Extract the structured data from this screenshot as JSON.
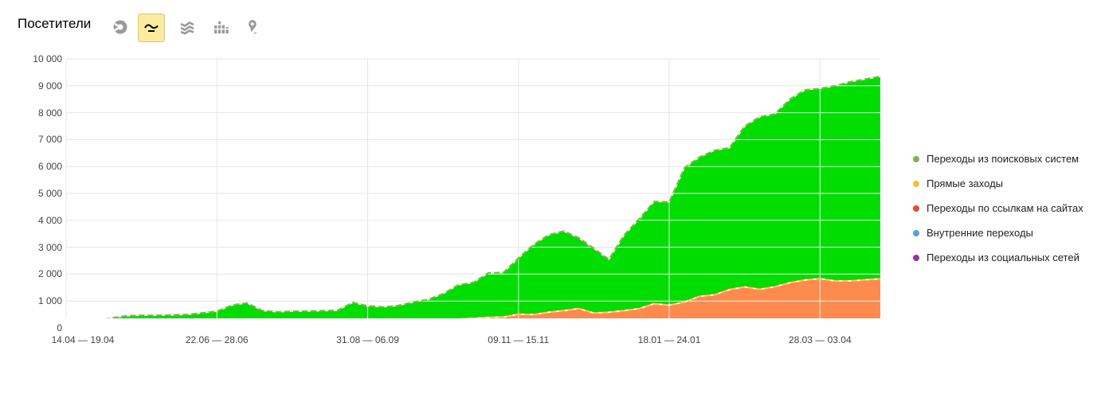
{
  "header": {
    "title": "Посетители",
    "toolbar": [
      {
        "id": "pie-chart",
        "selected": false
      },
      {
        "id": "line-chart",
        "selected": true
      },
      {
        "id": "stacked-area",
        "selected": false
      },
      {
        "id": "bar-chart",
        "selected": false
      },
      {
        "id": "map",
        "selected": false
      }
    ]
  },
  "colors": {
    "selected_button_bg": "#fbeb9e",
    "selected_button_border": "#d9c57a",
    "icon_gray": "#9a9a9a",
    "grid": "#e6e6e6",
    "grid_over_area": "#ffffff",
    "tick_text": "#444444"
  },
  "chart_data": {
    "type": "area",
    "stacked": true,
    "title": "Посетители",
    "grid": true,
    "legend_position": "right",
    "ylim": [
      0,
      10000
    ],
    "y_ticks": [
      0,
      1000,
      2000,
      3000,
      4000,
      5000,
      6000,
      7000,
      8000,
      9000,
      10000
    ],
    "y_tick_labels": [
      "0",
      "1 000",
      "2 000",
      "3 000",
      "4 000",
      "5 000",
      "6 000",
      "7 000",
      "8 000",
      "9 000",
      "10 000"
    ],
    "x_tick_labels": [
      "14.04 — 19.04",
      "22.06 — 28.06",
      "31.08 — 06.09",
      "09.11 — 15.11",
      "18.01 — 24.01",
      "28.03 — 03.04"
    ],
    "x_tick_week_index": [
      0,
      10,
      20,
      30,
      40,
      50
    ],
    "weeks_total": 55,
    "stack_order_bottom_to_top": [
      "Переходы из социальных сетей",
      "Переходы по ссылкам на сайтах",
      "Внутренние переходы",
      "Прямые заходы",
      "Переходы из поисковых систем"
    ],
    "series": [
      {
        "name": "Переходы из поисковых систем",
        "fill": "#00dd00",
        "stroke": "#9f9f6a",
        "dot": "#77b74e",
        "values": [
          45,
          30,
          115,
          235,
          305,
          325,
          325,
          335,
          340,
          400,
          442,
          627,
          662,
          437,
          417,
          437,
          432,
          437,
          432,
          707,
          587,
          542,
          577,
          697,
          787,
          965,
          1275,
          1333,
          1650,
          1655,
          2092,
          2602,
          2877,
          2957,
          2627,
          2407,
          1967,
          2805,
          3330,
          3800,
          3835,
          4990,
          5175,
          5368,
          5278,
          5975,
          6415,
          6420,
          6820,
          7070,
          7070,
          7250,
          7400,
          7460,
          7525
        ]
      },
      {
        "name": "Прямые заходы",
        "fill": "#ff8a4d",
        "stroke": "#f2cf5e",
        "dot": "#f3c337",
        "values": [
          20,
          25,
          30,
          30,
          30,
          30,
          30,
          30,
          35,
          35,
          40,
          45,
          50,
          45,
          45,
          45,
          50,
          55,
          60,
          65,
          70,
          75,
          80,
          90,
          100,
          120,
          140,
          160,
          180,
          200,
          230,
          300,
          380,
          430,
          420,
          380,
          420,
          470,
          540,
          730,
          680,
          780,
          830,
          1030,
          1220,
          1300,
          1210,
          1320,
          1460,
          1560,
          1600,
          1530,
          1520,
          1550,
          1580
        ]
      },
      {
        "name": "Переходы по ссылкам на сайтах",
        "fill": "#ee2222",
        "stroke": "#ee2222",
        "dot": "#ef4733",
        "values": [
          70,
          130,
          90,
          90,
          100,
          100,
          100,
          100,
          110,
          110,
          120,
          160,
          200,
          150,
          120,
          120,
          130,
          130,
          140,
          160,
          140,
          140,
          150,
          150,
          150,
          160,
          160,
          170,
          180,
          170,
          150,
          150,
          160,
          170,
          260,
          130,
          120,
          130,
          130,
          120,
          110,
          120,
          280,
          120,
          90,
          80,
          70,
          70,
          70,
          60,
          60,
          60,
          60,
          60,
          60
        ]
      },
      {
        "name": "Внутренние переходы",
        "fill": "#3060cf",
        "stroke": "#7db0e8",
        "dot": "#54a1da",
        "values": [
          5,
          5,
          5,
          5,
          5,
          5,
          5,
          5,
          5,
          5,
          6,
          6,
          6,
          6,
          6,
          6,
          6,
          6,
          6,
          6,
          8,
          8,
          8,
          8,
          8,
          10,
          10,
          12,
          15,
          20,
          110,
          30,
          25,
          25,
          25,
          25,
          25,
          28,
          30,
          30,
          35,
          40,
          45,
          60,
          90,
          120,
          130,
          115,
          125,
          135,
          145,
          135,
          145,
          155,
          160
        ]
      },
      {
        "name": "Переходы из социальных сетей",
        "fill": "#993399",
        "stroke": "#993399",
        "dot": "#95379e",
        "values": [
          10,
          10,
          10,
          10,
          10,
          10,
          10,
          10,
          10,
          10,
          12,
          12,
          12,
          12,
          12,
          12,
          12,
          12,
          12,
          12,
          15,
          15,
          15,
          15,
          15,
          15,
          15,
          15,
          15,
          15,
          18,
          18,
          18,
          18,
          18,
          18,
          18,
          18,
          20,
          20,
          20,
          20,
          20,
          22,
          22,
          25,
          25,
          25,
          25,
          25,
          25,
          25,
          25,
          25,
          25
        ]
      }
    ]
  }
}
